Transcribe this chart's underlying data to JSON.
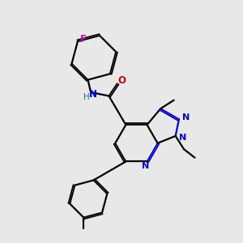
{
  "background_color": "#e8e8e8",
  "bond_color": "#000000",
  "N_color": "#0000cc",
  "O_color": "#cc0000",
  "F_color": "#cc00cc",
  "H_color": "#008080",
  "figsize": [
    3.0,
    3.0
  ],
  "dpi": 100,
  "xlim": [
    0,
    10
  ],
  "ylim": [
    0,
    10
  ]
}
